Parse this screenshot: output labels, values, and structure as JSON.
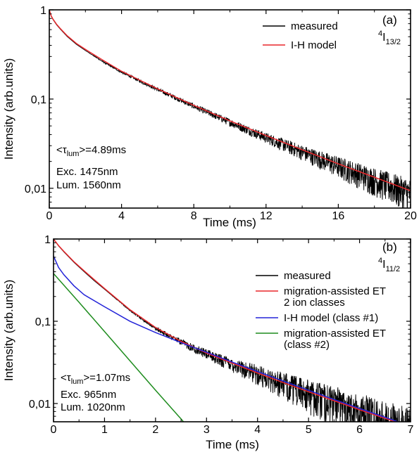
{
  "chart_data": [
    {
      "type": "line",
      "panel_label": "(a)",
      "transition": {
        "main": "4",
        "sym": "I",
        "sub": "13/2"
      },
      "xlabel": "Time (ms)",
      "ylabel": "Intensity (arb.units)",
      "xlim": [
        0,
        20
      ],
      "ylim": [
        0.006,
        1
      ],
      "yscale": "log",
      "x_ticks": [
        0,
        4,
        8,
        12,
        16,
        20
      ],
      "x_tick_labels": [
        "0",
        "4",
        "8",
        "12",
        "16",
        "20"
      ],
      "y_ticks": [
        1,
        0.1,
        0.01
      ],
      "y_tick_labels": [
        "1",
        "0,1",
        "0,01"
      ],
      "grid": false,
      "legend_position": "top-right",
      "annotations": [
        {
          "text": "<τ",
          "sub": "lum",
          "tail": ">=4.89ms"
        },
        {
          "text": "Exc. 1475nm"
        },
        {
          "text": "Lum. 1560nm"
        }
      ],
      "series": [
        {
          "name": "measured",
          "color": "#000000",
          "noisy": true,
          "x": [
            0,
            0.1,
            0.2,
            0.4,
            0.6,
            1,
            1.5,
            2,
            3,
            4,
            5,
            6,
            8,
            10,
            12,
            14,
            16,
            18,
            20
          ],
          "y": [
            1.0,
            0.85,
            0.78,
            0.68,
            0.61,
            0.5,
            0.41,
            0.35,
            0.26,
            0.2,
            0.16,
            0.128,
            0.083,
            0.055,
            0.037,
            0.0255,
            0.0178,
            0.0125,
            0.0088
          ],
          "noise_amplitude": [
            0,
            0,
            0,
            0,
            0,
            0,
            0,
            0,
            0.02,
            0.03,
            0.04,
            0.05,
            0.07,
            0.1,
            0.14,
            0.2,
            0.28,
            0.36,
            0.45
          ]
        },
        {
          "name": "I-H model",
          "color": "#e8262a",
          "x": [
            0,
            0.1,
            0.2,
            0.4,
            0.6,
            1,
            1.5,
            2,
            3,
            4,
            5,
            6,
            8,
            10,
            12,
            14,
            16,
            18,
            20
          ],
          "y": [
            1.0,
            0.86,
            0.79,
            0.69,
            0.62,
            0.51,
            0.42,
            0.36,
            0.27,
            0.205,
            0.163,
            0.13,
            0.085,
            0.057,
            0.039,
            0.027,
            0.0188,
            0.0133,
            0.0094
          ]
        }
      ]
    },
    {
      "type": "line",
      "panel_label": "(b)",
      "transition": {
        "main": "4",
        "sym": "I",
        "sub": "11/2"
      },
      "xlabel": "Time (ms)",
      "ylabel": "Intensity (arb.units)",
      "xlim": [
        0,
        7
      ],
      "ylim": [
        0.006,
        1
      ],
      "yscale": "log",
      "x_ticks": [
        0,
        1,
        2,
        3,
        4,
        5,
        6,
        7
      ],
      "x_tick_labels": [
        "0",
        "1",
        "2",
        "3",
        "4",
        "5",
        "6",
        "7"
      ],
      "y_ticks": [
        1,
        0.1,
        0.01
      ],
      "y_tick_labels": [
        "1",
        "0,1",
        "0,01"
      ],
      "grid": false,
      "legend_position": "right",
      "annotations": [
        {
          "text": "<τ",
          "sub": "lum",
          "tail": ">=1.07ms"
        },
        {
          "text": "Exc. 965nm"
        },
        {
          "text": "Lum. 1020nm"
        }
      ],
      "series": [
        {
          "name": "measured",
          "color": "#000000",
          "noisy": true,
          "x": [
            0,
            0.1,
            0.2,
            0.4,
            0.6,
            0.8,
            1,
            1.5,
            2,
            2.5,
            3,
            3.5,
            4,
            4.5,
            5,
            5.5,
            6,
            6.5,
            7
          ],
          "y": [
            1.0,
            0.82,
            0.7,
            0.52,
            0.4,
            0.31,
            0.245,
            0.135,
            0.082,
            0.056,
            0.04,
            0.03,
            0.023,
            0.0175,
            0.0135,
            0.0105,
            0.0082,
            0.0064,
            0.005
          ],
          "noise_amplitude": [
            0,
            0,
            0,
            0,
            0,
            0,
            0,
            0.02,
            0.05,
            0.09,
            0.14,
            0.2,
            0.28,
            0.36,
            0.45,
            0.55,
            0.62,
            0.7,
            0.75
          ]
        },
        {
          "name": "migration-assisted ET",
          "name2": "2 ion classes",
          "color": "#e8262a",
          "x": [
            0,
            0.1,
            0.2,
            0.4,
            0.6,
            0.8,
            1,
            1.5,
            2,
            2.5,
            3,
            3.5,
            4,
            4.5,
            5,
            5.5,
            6,
            6.5,
            7
          ],
          "y": [
            1.0,
            0.83,
            0.71,
            0.53,
            0.41,
            0.32,
            0.25,
            0.138,
            0.084,
            0.057,
            0.041,
            0.031,
            0.0235,
            0.018,
            0.0139,
            0.0108,
            0.0084,
            0.0066,
            0.0052
          ]
        },
        {
          "name": "I-H model (class #1)",
          "color": "#2323d8",
          "x": [
            0,
            0.1,
            0.2,
            0.4,
            0.6,
            1,
            1.5,
            2,
            2.5,
            3,
            3.5,
            4,
            4.5,
            5,
            5.5,
            6,
            6.5,
            7
          ],
          "y": [
            0.62,
            0.45,
            0.37,
            0.27,
            0.21,
            0.15,
            0.1,
            0.073,
            0.055,
            0.042,
            0.032,
            0.0245,
            0.0188,
            0.0145,
            0.0112,
            0.0087,
            0.0068,
            0.0053
          ]
        },
        {
          "name": "migration-assisted ET",
          "name2": "(class #2)",
          "color": "#1e8c1e",
          "x": [
            0,
            0.5,
            1,
            1.5,
            2,
            2.5,
            2.6
          ],
          "y": [
            0.38,
            0.17,
            0.075,
            0.033,
            0.0145,
            0.0065,
            0.0055
          ]
        }
      ]
    }
  ]
}
